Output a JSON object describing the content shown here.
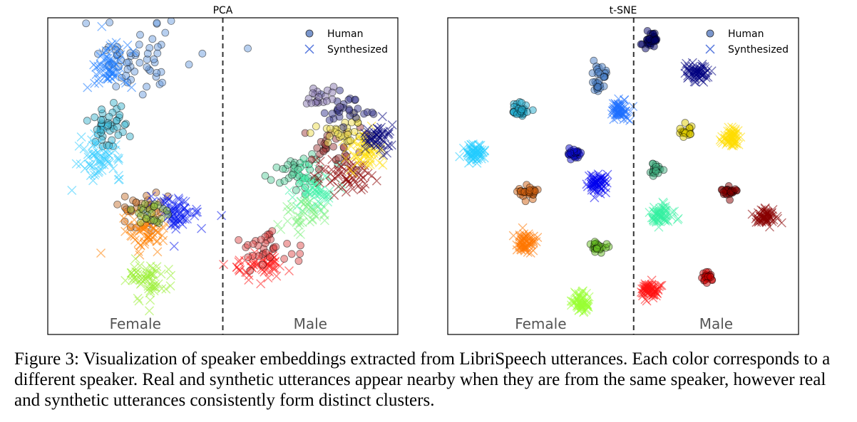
{
  "chart_data": [
    {
      "type": "scatter",
      "title": "PCA",
      "xlim": [
        0,
        100
      ],
      "ylim": [
        0,
        100
      ],
      "grid": false,
      "legend": {
        "placement": "top-right",
        "entries": [
          "Human",
          "Synthesized"
        ]
      },
      "region_labels": [
        "Female",
        "Male"
      ],
      "divider_x": 50,
      "clusters": [
        {
          "kind": "human",
          "color": "#6f9fe0",
          "x": 26,
          "y": 88,
          "spread": [
            8,
            6
          ],
          "n": 60
        },
        {
          "kind": "synth",
          "color": "#1e7bff",
          "x": 17,
          "y": 84,
          "spread": [
            3,
            4
          ],
          "n": 60
        },
        {
          "kind": "human",
          "color": "#3fb6d0",
          "x": 18,
          "y": 66,
          "spread": [
            3,
            4
          ],
          "n": 45
        },
        {
          "kind": "synth",
          "color": "#33ccff",
          "x": 15,
          "y": 56,
          "spread": [
            3,
            3
          ],
          "n": 60
        },
        {
          "kind": "human",
          "color": "#c8783a",
          "x": 27,
          "y": 40,
          "spread": [
            4,
            3
          ],
          "n": 30
        },
        {
          "kind": "synth",
          "color": "#ff8000",
          "x": 28,
          "y": 33,
          "spread": [
            3,
            3
          ],
          "n": 70
        },
        {
          "kind": "synth",
          "color": "#0a1aee",
          "x": 37,
          "y": 38,
          "spread": [
            4,
            2.5
          ],
          "n": 70
        },
        {
          "kind": "human",
          "color": "#8fbf40",
          "x": 29,
          "y": 38,
          "spread": [
            3,
            3
          ],
          "n": 25
        },
        {
          "kind": "synth",
          "color": "#99ee33",
          "x": 29,
          "y": 17,
          "spread": [
            3,
            3
          ],
          "n": 60
        },
        {
          "kind": "synth",
          "color": "#ff1a1a",
          "x": 60,
          "y": 22,
          "spread": [
            4,
            2.5
          ],
          "n": 60
        },
        {
          "kind": "human",
          "color": "#e05050",
          "x": 63,
          "y": 28,
          "spread": [
            4,
            3
          ],
          "n": 35
        },
        {
          "kind": "human",
          "color": "#60d0a0",
          "x": 72,
          "y": 51,
          "spread": [
            4,
            3
          ],
          "n": 40
        },
        {
          "kind": "synth",
          "color": "#40f0a8",
          "x": 76,
          "y": 46,
          "spread": [
            3,
            3
          ],
          "n": 60
        },
        {
          "kind": "synth",
          "color": "#80f080",
          "x": 73,
          "y": 38,
          "spread": [
            3,
            3
          ],
          "n": 40
        },
        {
          "kind": "synth",
          "color": "#8b0000",
          "x": 84,
          "y": 50,
          "spread": [
            4,
            3
          ],
          "n": 60
        },
        {
          "kind": "human",
          "color": "#a04040",
          "x": 82,
          "y": 60,
          "spread": [
            4,
            3
          ],
          "n": 30
        },
        {
          "kind": "synth",
          "color": "#ffdd00",
          "x": 91,
          "y": 58,
          "spread": [
            3,
            3
          ],
          "n": 60
        },
        {
          "kind": "human",
          "color": "#eedd50",
          "x": 84,
          "y": 64,
          "spread": [
            4,
            2
          ],
          "n": 30
        },
        {
          "kind": "synth",
          "color": "#00007a",
          "x": 94,
          "y": 62,
          "spread": [
            2.5,
            2.5
          ],
          "n": 50
        },
        {
          "kind": "human",
          "color": "#3a3a90",
          "x": 86,
          "y": 71,
          "spread": [
            4,
            2
          ],
          "n": 30
        },
        {
          "kind": "human",
          "color": "#8878b0",
          "x": 77,
          "y": 74,
          "spread": [
            3,
            2
          ],
          "n": 20
        }
      ]
    },
    {
      "type": "scatter",
      "title": "t-SNE",
      "xlim": [
        0,
        100
      ],
      "ylim": [
        0,
        100
      ],
      "grid": false,
      "legend": {
        "placement": "top-right",
        "entries": [
          "Human",
          "Synthesized"
        ]
      },
      "region_labels": [
        "Female",
        "Male"
      ],
      "divider_x": 53,
      "clusters": [
        {
          "kind": "human",
          "color": "#000066",
          "x": 58,
          "y": 93,
          "spread": [
            1,
            1.2
          ],
          "n": 30
        },
        {
          "kind": "human",
          "color": "#4a80c8",
          "x": 43,
          "y": 81,
          "spread": [
            1,
            2.5
          ],
          "n": 30
        },
        {
          "kind": "human",
          "color": "#20aacc",
          "x": 21,
          "y": 71,
          "spread": [
            1.2,
            1.2
          ],
          "n": 30
        },
        {
          "kind": "human",
          "color": "#0a0acc",
          "x": 36,
          "y": 57,
          "spread": [
            1,
            0.8
          ],
          "n": 25
        },
        {
          "kind": "human",
          "color": "#40b080",
          "x": 59,
          "y": 52,
          "spread": [
            1,
            1
          ],
          "n": 20
        },
        {
          "kind": "human",
          "color": "#d06010",
          "x": 23,
          "y": 45,
          "spread": [
            1.3,
            1
          ],
          "n": 30
        },
        {
          "kind": "human",
          "color": "#ddcc00",
          "x": 68,
          "y": 64,
          "spread": [
            1,
            1
          ],
          "n": 20
        },
        {
          "kind": "human",
          "color": "#880000",
          "x": 80,
          "y": 45,
          "spread": [
            1.2,
            0.8
          ],
          "n": 25
        },
        {
          "kind": "human",
          "color": "#66bb22",
          "x": 43,
          "y": 28,
          "spread": [
            1,
            1
          ],
          "n": 25
        },
        {
          "kind": "human",
          "color": "#cc0000",
          "x": 74,
          "y": 18,
          "spread": [
            0.8,
            0.8
          ],
          "n": 20
        },
        {
          "kind": "synth",
          "color": "#000080",
          "x": 71,
          "y": 83,
          "spread": [
            1.6,
            1.6
          ],
          "n": 60
        },
        {
          "kind": "synth",
          "color": "#1e6fff",
          "x": 49,
          "y": 71,
          "spread": [
            1.6,
            1.6
          ],
          "n": 60
        },
        {
          "kind": "synth",
          "color": "#22ccff",
          "x": 7.5,
          "y": 57,
          "spread": [
            1.6,
            1.4
          ],
          "n": 60
        },
        {
          "kind": "synth",
          "color": "#ffdd00",
          "x": 81,
          "y": 62,
          "spread": [
            1.6,
            1.6
          ],
          "n": 60
        },
        {
          "kind": "synth",
          "color": "#0000ee",
          "x": 43,
          "y": 48,
          "spread": [
            1.4,
            1.6
          ],
          "n": 60
        },
        {
          "kind": "synth",
          "color": "#33f0a0",
          "x": 61,
          "y": 38,
          "spread": [
            1.6,
            1.4
          ],
          "n": 60
        },
        {
          "kind": "synth",
          "color": "#880000",
          "x": 91,
          "y": 37,
          "spread": [
            1.6,
            1.4
          ],
          "n": 60
        },
        {
          "kind": "synth",
          "color": "#ff7700",
          "x": 22,
          "y": 29,
          "spread": [
            1.4,
            1.4
          ],
          "n": 60
        },
        {
          "kind": "synth",
          "color": "#ff1010",
          "x": 58,
          "y": 14,
          "spread": [
            1.3,
            1.4
          ],
          "n": 60
        },
        {
          "kind": "synth",
          "color": "#99ff33",
          "x": 38,
          "y": 10,
          "spread": [
            1.3,
            1.4
          ],
          "n": 60
        }
      ]
    }
  ],
  "caption": "Figure 3: Visualization of speaker embeddings extracted from LibriSpeech utterances. Each color corresponds to a different speaker. Real and synthetic utterances appear nearby when they are from the same speaker, however real and synthetic utterances consistently form distinct clusters."
}
